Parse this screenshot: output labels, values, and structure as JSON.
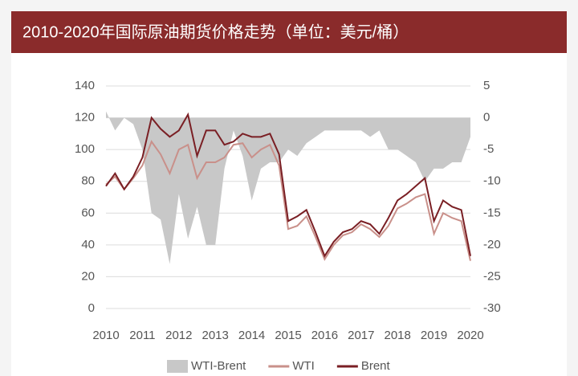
{
  "chart_data": {
    "type": "line",
    "title": "2010-2020年国际原油期货价格走势（单位：美元/桶）",
    "x": [
      2010,
      2010.25,
      2010.5,
      2010.75,
      2011,
      2011.25,
      2011.5,
      2011.75,
      2012,
      2012.25,
      2012.5,
      2012.75,
      2013,
      2013.25,
      2013.5,
      2013.75,
      2014,
      2014.25,
      2014.5,
      2014.75,
      2015,
      2015.25,
      2015.5,
      2015.75,
      2016,
      2016.25,
      2016.5,
      2016.75,
      2017,
      2017.25,
      2017.5,
      2017.75,
      2018,
      2018.25,
      2018.5,
      2018.75,
      2019,
      2019.25,
      2019.5,
      2019.75,
      2020
    ],
    "series": [
      {
        "name": "WTI-Brent",
        "color": "#c8c8c8",
        "axis": "y2",
        "values": [
          1,
          -2,
          0,
          -1,
          -5,
          -15,
          -16,
          -23,
          -12,
          -19,
          -14,
          -20,
          -20,
          -8,
          -2,
          -6,
          -13,
          -8,
          -7,
          -7,
          -5,
          -6,
          -4,
          -3,
          -2,
          -2,
          -2,
          -2,
          -2,
          -3,
          -2,
          -5,
          -5,
          -6,
          -7,
          -10,
          -8,
          -8,
          -7,
          -7,
          -3
        ]
      },
      {
        "name": "WTI",
        "color": "#c9908a",
        "values": [
          78,
          83,
          75,
          82,
          90,
          105,
          97,
          85,
          100,
          103,
          82,
          92,
          92,
          95,
          103,
          104,
          95,
          100,
          103,
          90,
          50,
          52,
          58,
          45,
          31,
          40,
          46,
          48,
          53,
          50,
          45,
          52,
          63,
          66,
          70,
          72,
          47,
          60,
          57,
          55,
          30
        ]
      },
      {
        "name": "Brent",
        "color": "#7a1f24",
        "values": [
          77,
          85,
          75,
          83,
          95,
          120,
          113,
          108,
          112,
          122,
          96,
          112,
          112,
          103,
          105,
          110,
          108,
          108,
          110,
          97,
          55,
          58,
          62,
          48,
          33,
          42,
          48,
          50,
          55,
          53,
          47,
          57,
          68,
          72,
          77,
          82,
          55,
          68,
          64,
          62,
          33
        ]
      }
    ],
    "xlim": [
      2010,
      2020
    ],
    "xticks": [
      2010,
      2011,
      2012,
      2013,
      2014,
      2015,
      2016,
      2017,
      2018,
      2019,
      2020
    ],
    "ylim": [
      0,
      140
    ],
    "yticks": [
      0,
      20,
      40,
      60,
      80,
      100,
      120,
      140
    ],
    "y2lim": [
      -30,
      5
    ],
    "y2ticks": [
      -30,
      -25,
      -20,
      -15,
      -10,
      -5,
      0,
      5
    ],
    "grid": true
  }
}
